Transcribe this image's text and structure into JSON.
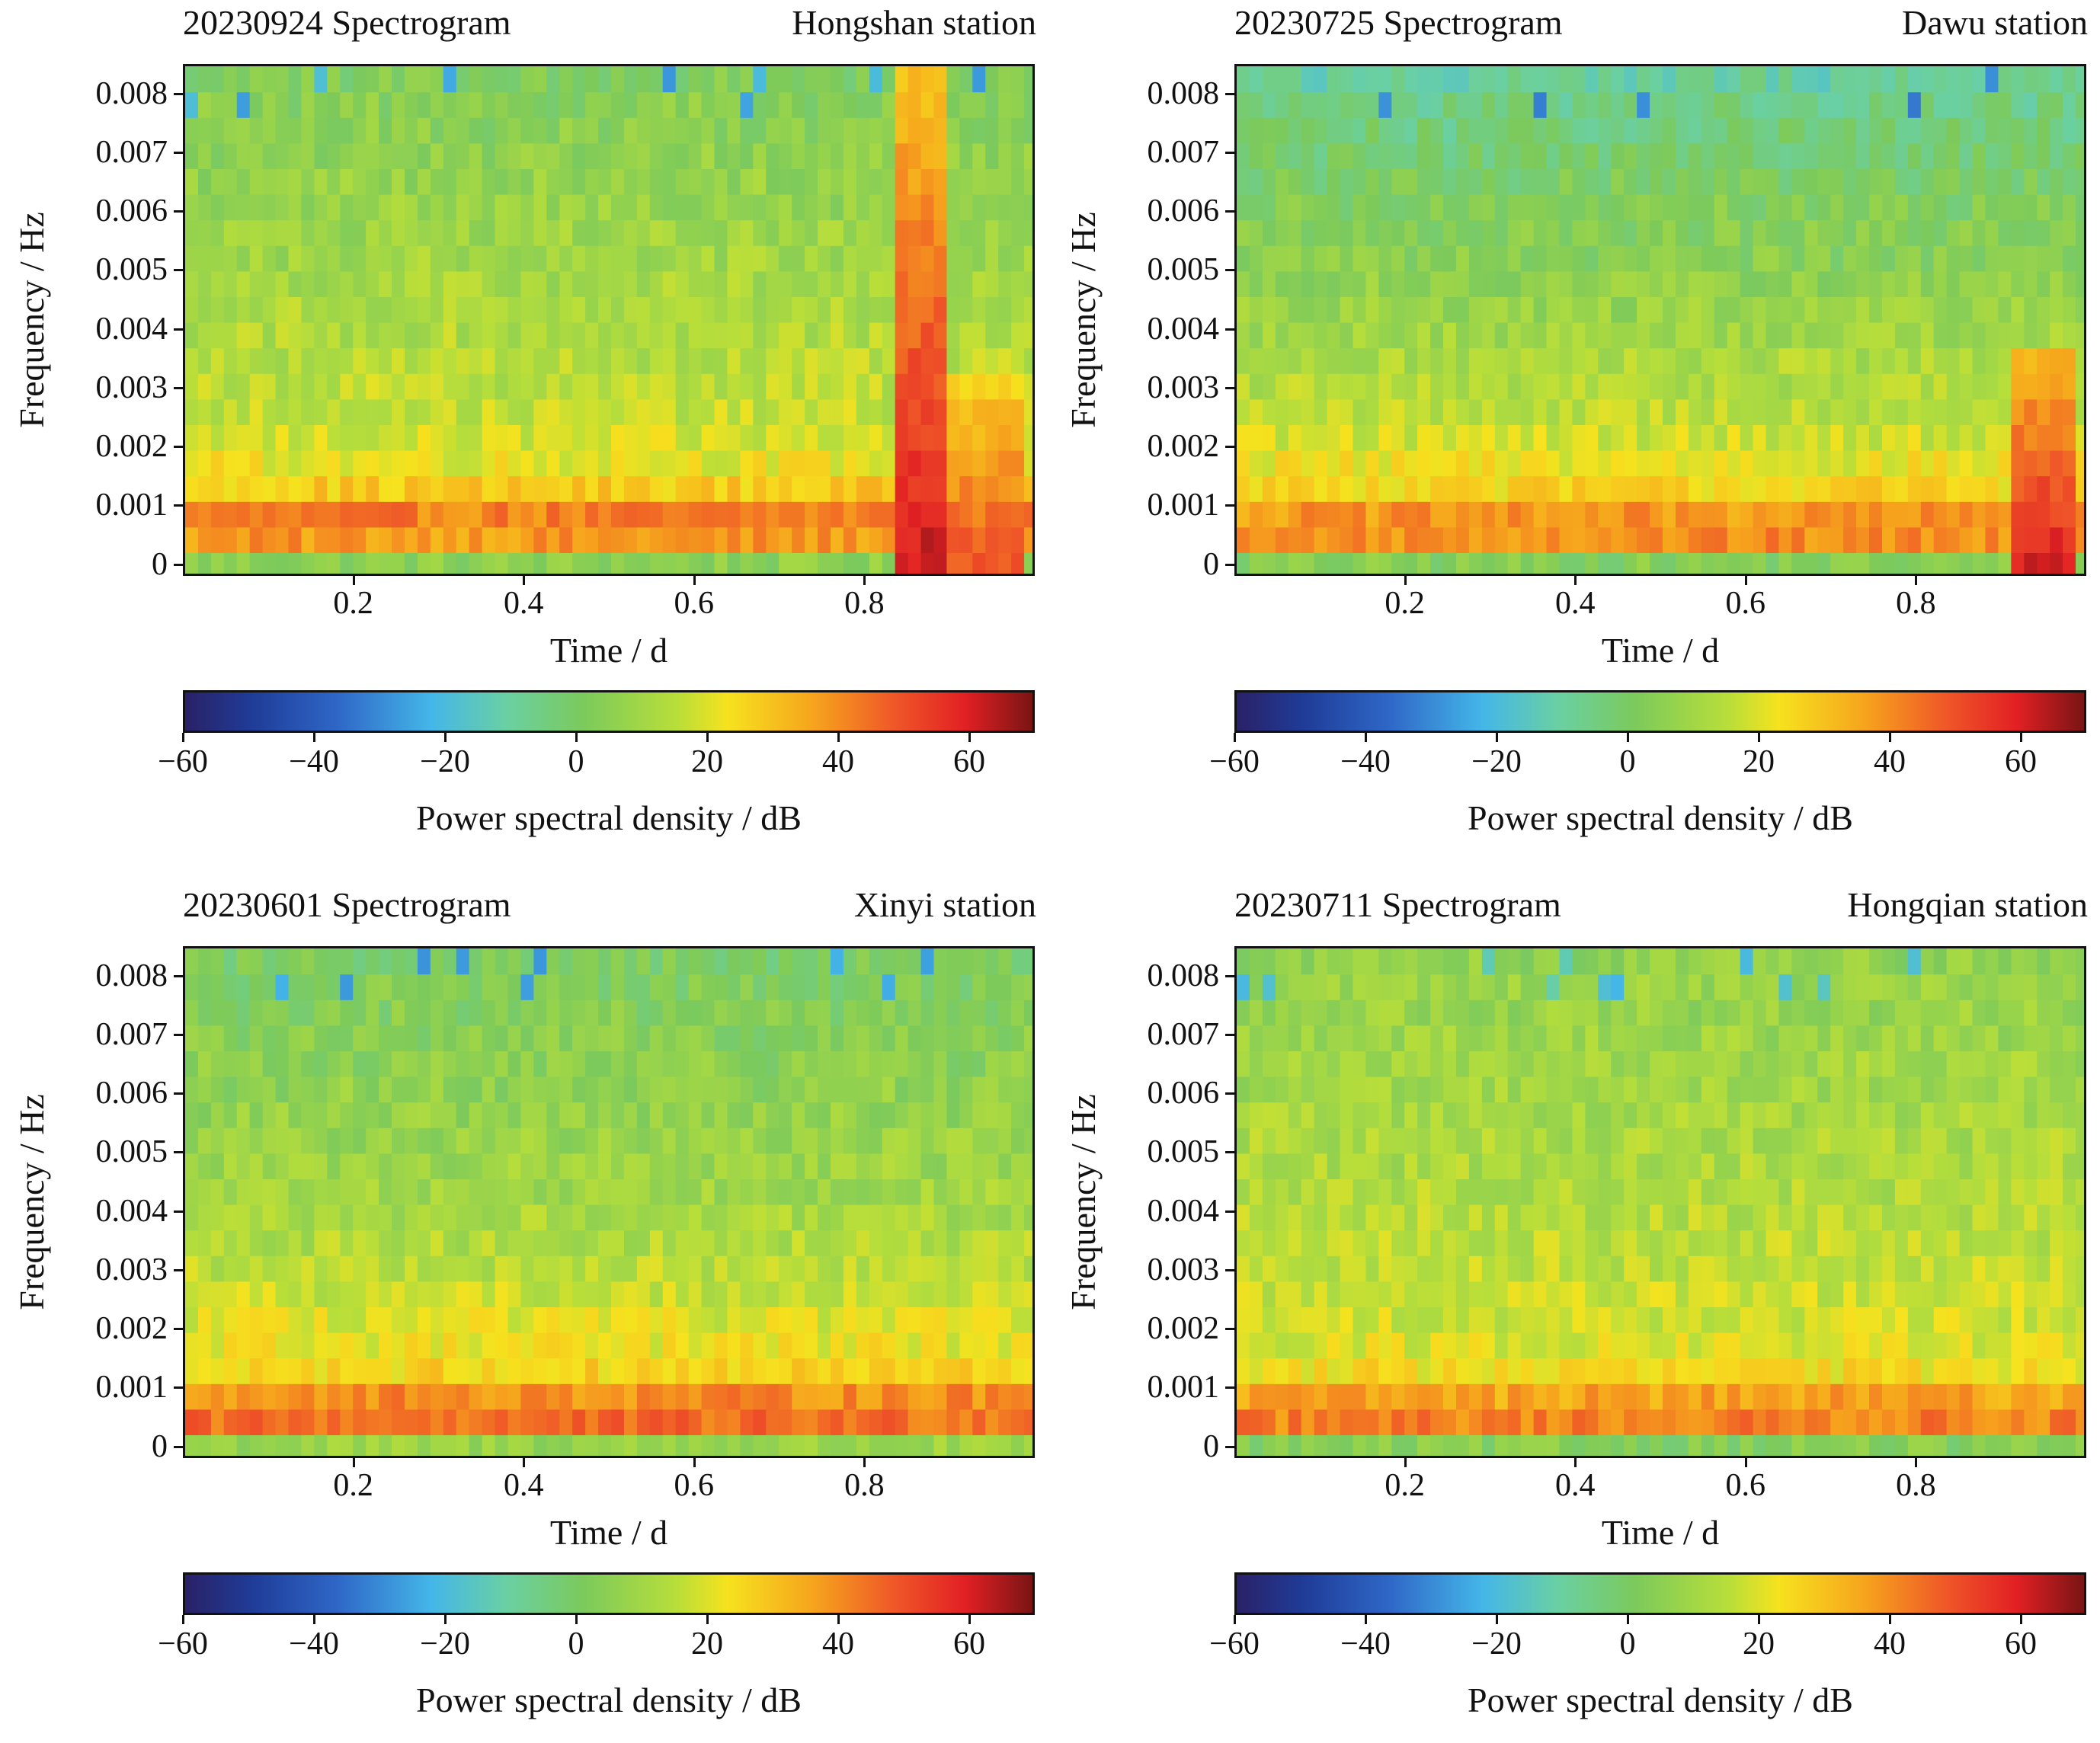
{
  "chart_data": [
    {
      "type": "heatmap",
      "title": "20230924 Spectrogram",
      "station": "Hongshan station",
      "xlabel": "Time / d",
      "ylabel": "Frequency / Hz",
      "xticks": [
        "0.2",
        "0.4",
        "0.6",
        "0.8"
      ],
      "yticks": [
        "0",
        "0.001",
        "0.002",
        "0.003",
        "0.004",
        "0.005",
        "0.006",
        "0.007",
        "0.008"
      ],
      "xlim": [
        0.0,
        1.0
      ],
      "ylim": [
        -0.0002,
        0.0085
      ],
      "colorbar": {
        "label": "Power spectral density / dB",
        "range": [
          -60,
          70
        ],
        "ticks": [
          "−60",
          "−40",
          "−20",
          "0",
          "20",
          "40",
          "60"
        ]
      },
      "z_profile_db": [
        5,
        38,
        42,
        28,
        22,
        18,
        16,
        15,
        14,
        13,
        12,
        11,
        10,
        9,
        8,
        7,
        6,
        5,
        4,
        2
      ],
      "events": [
        {
          "t": 0.87,
          "width": 0.03,
          "peak_db": 62,
          "extent_hz": 0.0085
        },
        {
          "t": 0.94,
          "width": 0.04,
          "peak_db": 50,
          "extent_hz": 0.0035
        }
      ]
    },
    {
      "type": "heatmap",
      "title": "20230725 Spectrogram",
      "station": "Dawu station",
      "xlabel": "Time / d",
      "ylabel": "Frequency / Hz",
      "xticks": [
        "0.2",
        "0.4",
        "0.6",
        "0.8"
      ],
      "yticks": [
        "0",
        "0.001",
        "0.002",
        "0.003",
        "0.004",
        "0.005",
        "0.006",
        "0.007",
        "0.008"
      ],
      "xlim": [
        0.0,
        1.0
      ],
      "ylim": [
        -0.0002,
        0.0085
      ],
      "colorbar": {
        "label": "Power spectral density / dB",
        "range": [
          -60,
          70
        ],
        "ticks": [
          "−60",
          "−40",
          "−20",
          "0",
          "20",
          "40",
          "60"
        ]
      },
      "z_profile_db": [
        3,
        40,
        38,
        26,
        22,
        18,
        15,
        13,
        12,
        10,
        8,
        6,
        4,
        3,
        2,
        0,
        -2,
        -4,
        -6,
        -10
      ],
      "events": [
        {
          "t": 0.95,
          "width": 0.04,
          "peak_db": 60,
          "extent_hz": 0.004
        }
      ]
    },
    {
      "type": "heatmap",
      "title": "20230601 Spectrogram",
      "station": "Xinyi station",
      "xlabel": "Time / d",
      "ylabel": "Frequency / Hz",
      "xticks": [
        "0.2",
        "0.4",
        "0.6",
        "0.8"
      ],
      "yticks": [
        "0",
        "0.001",
        "0.002",
        "0.003",
        "0.004",
        "0.005",
        "0.006",
        "0.007",
        "0.008"
      ],
      "xlim": [
        0.0,
        1.0
      ],
      "ylim": [
        -0.0002,
        0.0085
      ],
      "colorbar": {
        "label": "Power spectral density / dB",
        "range": [
          -60,
          70
        ],
        "ticks": [
          "−60",
          "−40",
          "−20",
          "0",
          "20",
          "40",
          "60"
        ]
      },
      "z_profile_db": [
        8,
        45,
        40,
        26,
        22,
        20,
        17,
        15,
        13,
        11,
        10,
        9,
        8,
        7,
        6,
        5,
        4,
        3,
        2,
        0
      ],
      "events": []
    },
    {
      "type": "heatmap",
      "title": "20230711 Spectrogram",
      "station": "Hongqian station",
      "xlabel": "Time / d",
      "ylabel": "Frequency / Hz",
      "xticks": [
        "0.2",
        "0.4",
        "0.6",
        "0.8"
      ],
      "yticks": [
        "0",
        "0.001",
        "0.002",
        "0.003",
        "0.004",
        "0.005",
        "0.006",
        "0.007",
        "0.008"
      ],
      "xlim": [
        0.0,
        1.0
      ],
      "ylim": [
        -0.0002,
        0.0085
      ],
      "colorbar": {
        "label": "Power spectral density / dB",
        "range": [
          -60,
          70
        ],
        "ticks": [
          "−60",
          "−40",
          "−20",
          "0",
          "20",
          "40",
          "60"
        ]
      },
      "z_profile_db": [
        3,
        42,
        36,
        24,
        20,
        18,
        17,
        16,
        15,
        14,
        13,
        12,
        12,
        11,
        10,
        10,
        9,
        8,
        8,
        6
      ],
      "events": []
    }
  ]
}
